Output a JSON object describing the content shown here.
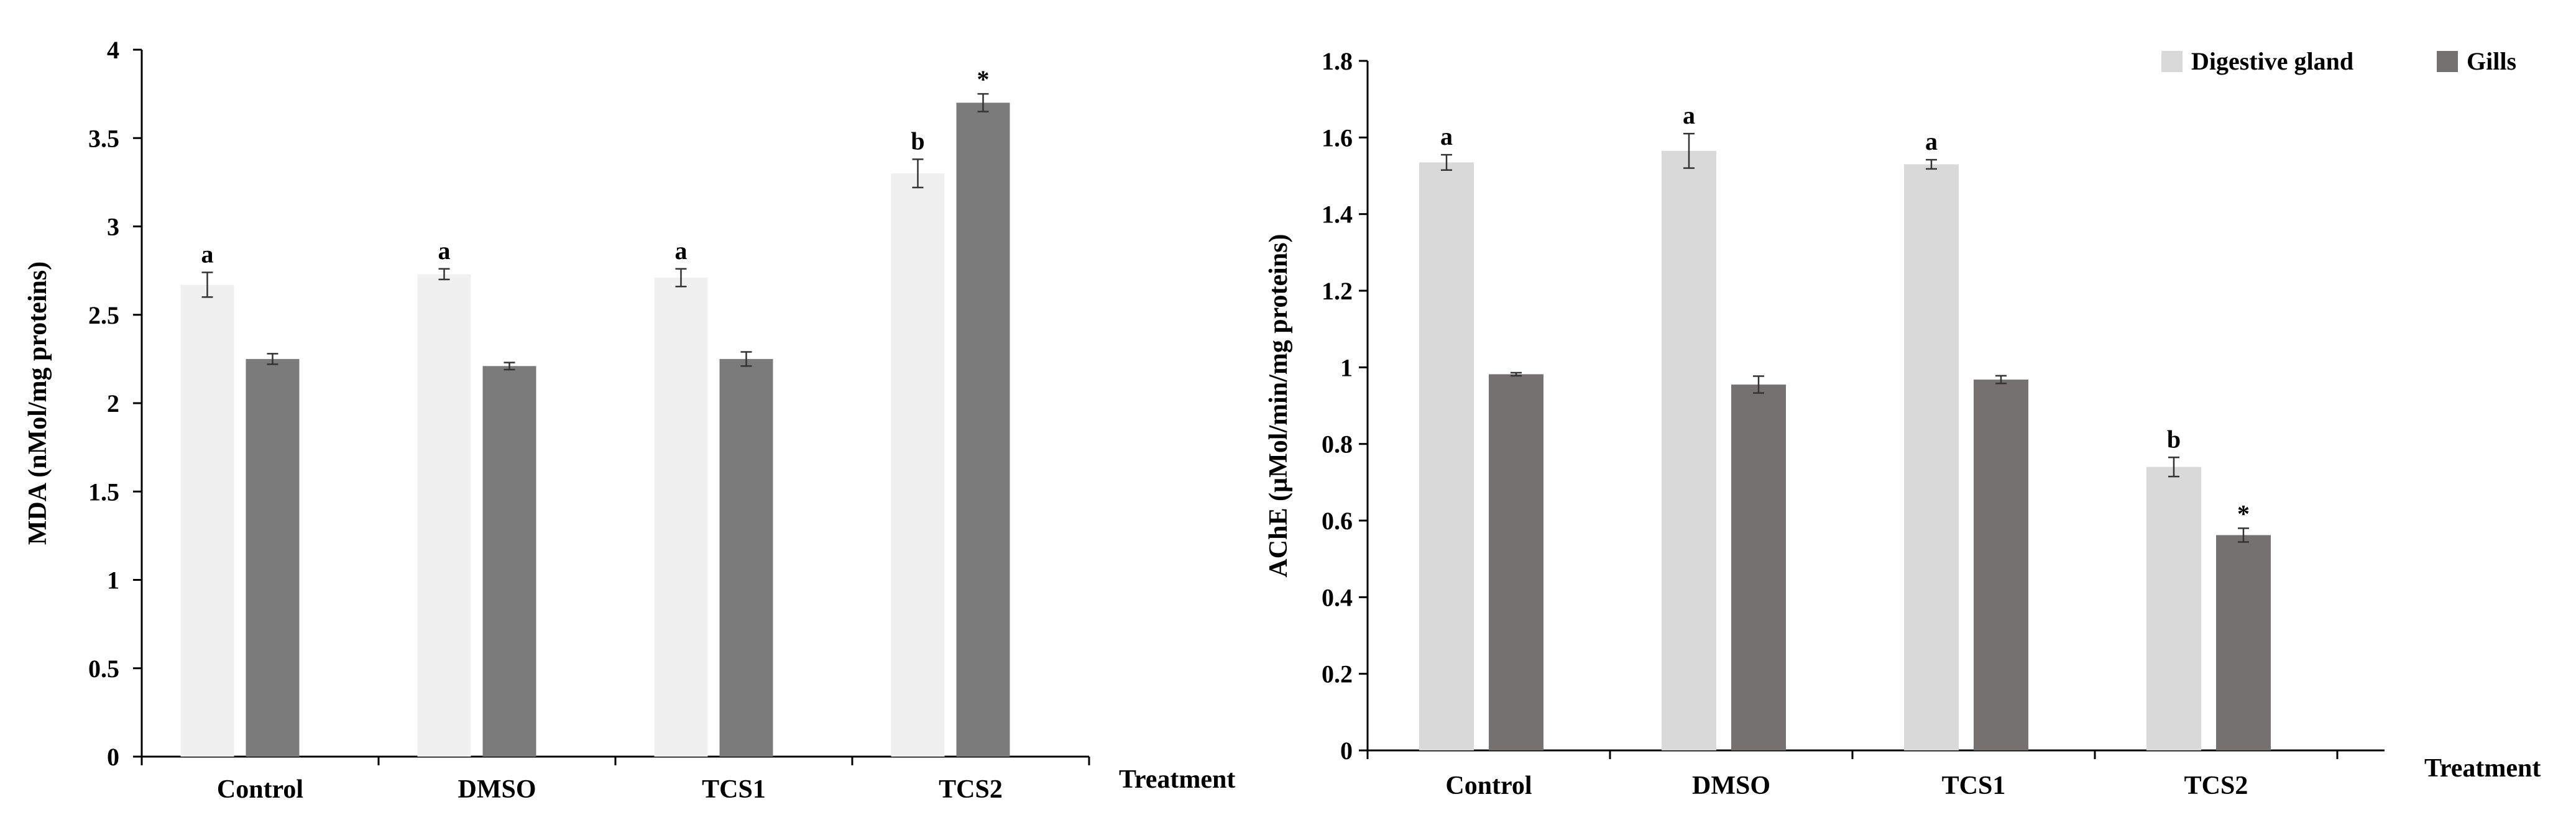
{
  "chart_data": [
    {
      "type": "bar",
      "title": "",
      "ylabel": "MDA (nMol/mg  proteins)",
      "xlabel": "Treatment",
      "ylim": [
        0,
        4
      ],
      "yticks": [
        0,
        0.5,
        1,
        1.5,
        2,
        2.5,
        3,
        3.5,
        4
      ],
      "ytick_labels": [
        "0",
        "0.5",
        "1",
        "1.5",
        "2",
        "2.5",
        "3",
        "3.5",
        "4"
      ],
      "categories": [
        "Control",
        "DMSO",
        "TCS1",
        "TCS2"
      ],
      "series": [
        {
          "name": "Digestive gland",
          "color": "#f0f0f0",
          "values": [
            2.67,
            2.73,
            2.71,
            3.3
          ],
          "errors": [
            0.07,
            0.03,
            0.05,
            0.08
          ],
          "annotations": [
            "a",
            "a",
            "a",
            "b"
          ]
        },
        {
          "name": "Gills",
          "color": "#7b7b7b",
          "values": [
            2.25,
            2.21,
            2.25,
            3.7
          ],
          "errors": [
            0.03,
            0.02,
            0.04,
            0.05
          ],
          "annotations": [
            "",
            "",
            "",
            "*"
          ]
        }
      ]
    },
    {
      "type": "bar",
      "title": "",
      "ylabel": "AChE  (µMol/min/mg  proteins)",
      "xlabel": "Treatment",
      "ylim": [
        0,
        1.8
      ],
      "yticks": [
        0,
        0.2,
        0.4,
        0.6,
        0.8,
        1,
        1.2,
        1.4,
        1.6,
        1.8
      ],
      "ytick_labels": [
        "0",
        "0.2",
        "0.4",
        "0.6",
        "0.8",
        "1",
        "1.2",
        "1.4",
        "1.6",
        "1.8"
      ],
      "categories": [
        "Control",
        "DMSO",
        "TCS1",
        "TCS2"
      ],
      "legend": {
        "placement": "top-right",
        "entries": [
          "Digestive gland",
          "Gills"
        ]
      },
      "series": [
        {
          "name": "Digestive gland",
          "color": "#d9d9d9",
          "values": [
            1.535,
            1.565,
            1.53,
            0.74
          ],
          "errors": [
            0.02,
            0.045,
            0.012,
            0.025
          ],
          "annotations": [
            "a",
            "a",
            "a",
            "b"
          ]
        },
        {
          "name": "Gills",
          "color": "#767171",
          "values": [
            0.982,
            0.955,
            0.968,
            0.562
          ],
          "errors": [
            0.004,
            0.022,
            0.01,
            0.018
          ],
          "annotations": [
            "",
            "",
            "",
            "*"
          ]
        }
      ]
    }
  ]
}
